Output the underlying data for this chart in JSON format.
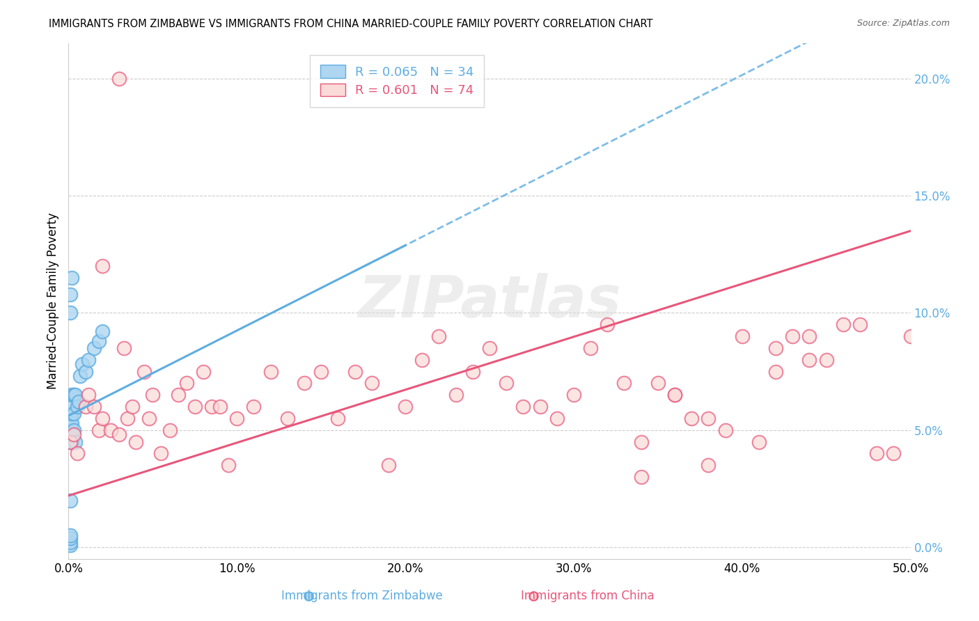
{
  "title": "IMMIGRANTS FROM ZIMBABWE VS IMMIGRANTS FROM CHINA MARRIED-COUPLE FAMILY POVERTY CORRELATION CHART",
  "source": "Source: ZipAtlas.com",
  "ylabel": "Married-Couple Family Poverty",
  "xlim": [
    0,
    0.5
  ],
  "ylim": [
    -0.005,
    0.215
  ],
  "yticks": [
    0,
    0.05,
    0.1,
    0.15,
    0.2
  ],
  "xticks": [
    0,
    0.1,
    0.2,
    0.3,
    0.4,
    0.5
  ],
  "legend_r_zimbabwe": "R = 0.065",
  "legend_n_zimbabwe": "N = 34",
  "legend_r_china": "R = 0.601",
  "legend_n_china": "N = 74",
  "color_zimbabwe_fill": "#AED6F1",
  "color_zimbabwe_edge": "#5DADE2",
  "color_china_fill": "#FADBD8",
  "color_china_edge": "#E8567A",
  "color_trendline_zimbabwe": "#5DADE2",
  "color_trendline_china": "#E8567A",
  "watermark": "ZIPatlas",
  "background_color": "#FFFFFF",
  "yaxis_label_color": "#5DADE2",
  "zimbabwe_x": [
    0.001,
    0.001,
    0.001,
    0.001,
    0.001,
    0.001,
    0.001,
    0.001,
    0.001,
    0.001,
    0.002,
    0.002,
    0.002,
    0.002,
    0.002,
    0.002,
    0.002,
    0.003,
    0.003,
    0.003,
    0.004,
    0.004,
    0.005,
    0.006,
    0.007,
    0.008,
    0.01,
    0.012,
    0.015,
    0.018,
    0.02,
    0.001,
    0.001,
    0.002
  ],
  "zimbabwe_y": [
    0.001,
    0.002,
    0.004,
    0.005,
    0.02,
    0.045,
    0.048,
    0.05,
    0.053,
    0.057,
    0.045,
    0.048,
    0.05,
    0.053,
    0.057,
    0.06,
    0.065,
    0.05,
    0.057,
    0.065,
    0.045,
    0.065,
    0.06,
    0.062,
    0.073,
    0.078,
    0.075,
    0.08,
    0.085,
    0.088,
    0.092,
    0.1,
    0.108,
    0.115
  ],
  "china_x": [
    0.001,
    0.003,
    0.005,
    0.01,
    0.012,
    0.015,
    0.018,
    0.02,
    0.025,
    0.03,
    0.033,
    0.035,
    0.038,
    0.04,
    0.045,
    0.048,
    0.05,
    0.055,
    0.06,
    0.065,
    0.07,
    0.075,
    0.08,
    0.085,
    0.09,
    0.095,
    0.1,
    0.11,
    0.12,
    0.13,
    0.14,
    0.15,
    0.16,
    0.17,
    0.18,
    0.19,
    0.2,
    0.21,
    0.22,
    0.23,
    0.24,
    0.25,
    0.26,
    0.27,
    0.28,
    0.29,
    0.3,
    0.31,
    0.32,
    0.33,
    0.34,
    0.35,
    0.36,
    0.37,
    0.38,
    0.39,
    0.4,
    0.41,
    0.42,
    0.43,
    0.44,
    0.45,
    0.46,
    0.47,
    0.48,
    0.49,
    0.5,
    0.34,
    0.36,
    0.38,
    0.42,
    0.44,
    0.02,
    0.03
  ],
  "china_y": [
    0.045,
    0.048,
    0.04,
    0.06,
    0.065,
    0.06,
    0.05,
    0.055,
    0.05,
    0.048,
    0.085,
    0.055,
    0.06,
    0.045,
    0.075,
    0.055,
    0.065,
    0.04,
    0.05,
    0.065,
    0.07,
    0.06,
    0.075,
    0.06,
    0.06,
    0.035,
    0.055,
    0.06,
    0.075,
    0.055,
    0.07,
    0.075,
    0.055,
    0.075,
    0.07,
    0.035,
    0.06,
    0.08,
    0.09,
    0.065,
    0.075,
    0.085,
    0.07,
    0.06,
    0.06,
    0.055,
    0.065,
    0.085,
    0.095,
    0.07,
    0.045,
    0.07,
    0.065,
    0.055,
    0.055,
    0.05,
    0.09,
    0.045,
    0.075,
    0.09,
    0.09,
    0.08,
    0.095,
    0.095,
    0.04,
    0.04,
    0.09,
    0.03,
    0.065,
    0.035,
    0.085,
    0.08,
    0.12,
    0.2
  ]
}
